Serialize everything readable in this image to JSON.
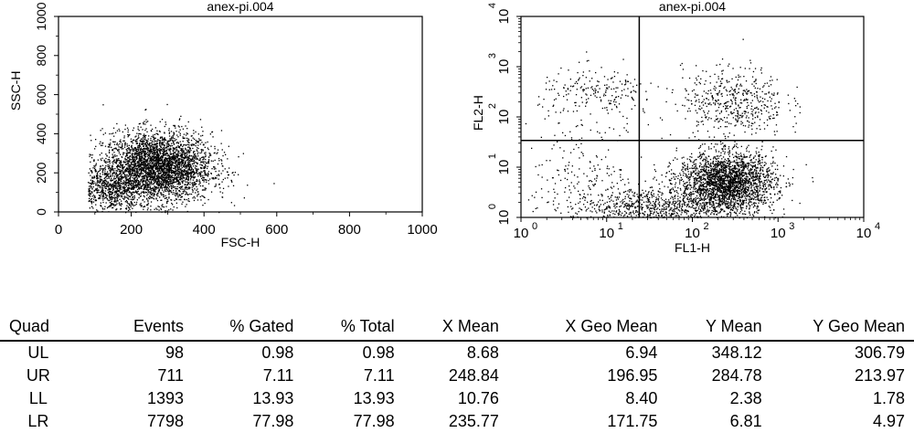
{
  "chart_data": [
    {
      "type": "scatter",
      "title": "anex-pi.004",
      "xlabel": "FSC-H",
      "ylabel": "SSC-H",
      "xlim": [
        0,
        1000
      ],
      "ylim": [
        0,
        1000
      ],
      "xscale": "linear",
      "yscale": "linear",
      "x_ticks": [
        "0",
        "200",
        "400",
        "600",
        "800",
        "1000"
      ],
      "y_ticks": [
        "0",
        "200",
        "400",
        "600",
        "800",
        "1000"
      ],
      "clusters": [
        {
          "x": 270,
          "y": 230,
          "sx": 75,
          "sy": 90,
          "weight": 0.85
        },
        {
          "x": 140,
          "y": 120,
          "sx": 45,
          "sy": 55,
          "weight": 0.15
        }
      ]
    },
    {
      "type": "scatter",
      "title": "anex-pi.004",
      "xlabel": "FL1-H",
      "ylabel": "FL2-H",
      "xlim": [
        1,
        10000
      ],
      "ylim": [
        1,
        10000
      ],
      "xscale": "log",
      "yscale": "log",
      "x_ticks": [
        "10",
        "10",
        "10",
        "10",
        "10"
      ],
      "x_tick_exponents": [
        "0",
        "1",
        "2",
        "3",
        "4"
      ],
      "y_ticks": [
        "10",
        "10",
        "10",
        "10",
        "10"
      ],
      "y_tick_exponents": [
        "0",
        "1",
        "2",
        "3",
        "4"
      ],
      "quadrant_gate": {
        "x": 24,
        "y": 34
      },
      "clusters": [
        {
          "x": 250,
          "y": 5,
          "sx": 0.28,
          "sy": 0.3,
          "weight": 0.6
        },
        {
          "x": 30,
          "y": 1.6,
          "sx": 0.45,
          "sy": 0.2,
          "weight": 0.18
        },
        {
          "x": 300,
          "y": 200,
          "sx": 0.3,
          "sy": 0.35,
          "weight": 0.12
        },
        {
          "x": 8,
          "y": 300,
          "sx": 0.35,
          "sy": 0.25,
          "weight": 0.05
        },
        {
          "x": 5,
          "y": 8,
          "sx": 0.4,
          "sy": 0.5,
          "weight": 0.05
        }
      ]
    }
  ],
  "stats_table": {
    "headers": [
      "Quad",
      "Events",
      "% Gated",
      "% Total",
      "X Mean",
      "X Geo Mean",
      "Y Mean",
      "Y Geo Mean"
    ],
    "rows": [
      [
        "UL",
        "98",
        "0.98",
        "0.98",
        "8.68",
        "6.94",
        "348.12",
        "306.79"
      ],
      [
        "UR",
        "711",
        "7.11",
        "7.11",
        "248.84",
        "196.95",
        "284.78",
        "213.97"
      ],
      [
        "LL",
        "1393",
        "13.93",
        "13.93",
        "10.76",
        "8.40",
        "2.38",
        "1.78"
      ],
      [
        "LR",
        "7798",
        "77.98",
        "77.98",
        "235.77",
        "171.75",
        "6.81",
        "4.97"
      ]
    ]
  }
}
